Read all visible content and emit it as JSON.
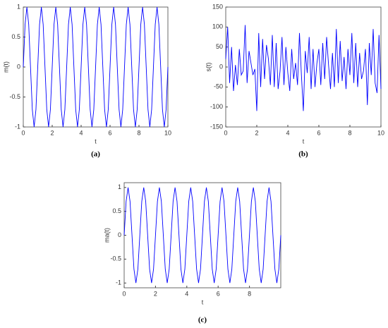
{
  "chart_data": [
    {
      "type": "line",
      "caption": "(a)",
      "xlabel": "t",
      "ylabel": "m(t)",
      "x": [
        0,
        0.125,
        0.25,
        0.375,
        0.5,
        0.625,
        0.75,
        0.875,
        1,
        1.125,
        1.25,
        1.375,
        1.5,
        1.625,
        1.75,
        1.875,
        2,
        2.125,
        2.25,
        2.375,
        2.5,
        2.625,
        2.75,
        2.875,
        3,
        3.125,
        3.25,
        3.375,
        3.5,
        3.625,
        3.75,
        3.875,
        4,
        4.125,
        4.25,
        4.375,
        4.5,
        4.625,
        4.75,
        4.875,
        5,
        5.125,
        5.25,
        5.375,
        5.5,
        5.625,
        5.75,
        5.875,
        6,
        6.125,
        6.25,
        6.375,
        6.5,
        6.625,
        6.75,
        6.875,
        7,
        7.125,
        7.25,
        7.375,
        7.5,
        7.625,
        7.75,
        7.875,
        8,
        8.125,
        8.25,
        8.375,
        8.5,
        8.625,
        8.75,
        8.875,
        9,
        9.125,
        9.25,
        9.375,
        9.5,
        9.625,
        9.75,
        9.875,
        10
      ],
      "series": [
        {
          "color": "#0000ff",
          "values": [
            0,
            0.71,
            1,
            0.71,
            0,
            -0.71,
            -1,
            -0.71,
            0,
            0.71,
            1,
            0.71,
            0,
            -0.71,
            -1,
            -0.71,
            0,
            0.71,
            1,
            0.71,
            0,
            -0.71,
            -1,
            -0.71,
            0,
            0.71,
            1,
            0.71,
            0,
            -0.71,
            -1,
            -0.71,
            0,
            0.71,
            1,
            0.71,
            0,
            -0.71,
            -1,
            -0.71,
            0,
            0.71,
            1,
            0.71,
            0,
            -0.71,
            -1,
            -0.71,
            0,
            0.71,
            1,
            0.71,
            0,
            -0.71,
            -1,
            -0.71,
            0,
            0.71,
            1,
            0.71,
            0,
            -0.71,
            -1,
            -0.71,
            0,
            0.71,
            1,
            0.71,
            0,
            -0.71,
            -1,
            -0.71,
            0,
            0.71,
            1,
            0.71,
            0,
            -0.71,
            -1,
            -0.71,
            0
          ]
        }
      ],
      "xlim": [
        0,
        10
      ],
      "xticks": [
        0,
        2,
        4,
        6,
        8,
        10
      ],
      "ylim": [
        -1,
        1
      ],
      "yticks": [
        -1,
        -0.5,
        0,
        0.5,
        1
      ]
    },
    {
      "type": "line",
      "caption": "(b)",
      "xlabel": "t",
      "ylabel": "s(t)",
      "x": [
        0,
        0.125,
        0.25,
        0.375,
        0.5,
        0.625,
        0.75,
        0.875,
        1,
        1.125,
        1.25,
        1.375,
        1.5,
        1.625,
        1.75,
        1.875,
        2,
        2.125,
        2.25,
        2.375,
        2.5,
        2.625,
        2.75,
        2.875,
        3,
        3.125,
        3.25,
        3.375,
        3.5,
        3.625,
        3.75,
        3.875,
        4,
        4.125,
        4.25,
        4.375,
        4.5,
        4.625,
        4.75,
        4.875,
        5,
        5.125,
        5.25,
        5.375,
        5.5,
        5.625,
        5.75,
        5.875,
        6,
        6.125,
        6.25,
        6.375,
        6.5,
        6.625,
        6.75,
        6.875,
        7,
        7.125,
        7.25,
        7.375,
        7.5,
        7.625,
        7.75,
        7.875,
        8,
        8.125,
        8.25,
        8.375,
        8.5,
        8.625,
        8.75,
        8.875,
        9,
        9.125,
        9.25,
        9.375,
        9.5,
        9.625,
        9.75,
        9.875,
        10
      ],
      "series": [
        {
          "color": "#0000ff",
          "values": [
            20,
            100,
            -40,
            50,
            -60,
            5,
            -45,
            45,
            -20,
            -10,
            105,
            -40,
            40,
            10,
            -20,
            -5,
            -110,
            85,
            -50,
            70,
            -30,
            55,
            20,
            -45,
            80,
            -50,
            60,
            -55,
            -10,
            75,
            -45,
            50,
            -15,
            -60,
            45,
            -30,
            10,
            -45,
            85,
            -20,
            -110,
            40,
            -15,
            75,
            -55,
            45,
            -50,
            10,
            45,
            -45,
            60,
            -30,
            75,
            5,
            -55,
            35,
            -50,
            95,
            -40,
            65,
            -35,
            25,
            -55,
            45,
            -20,
            85,
            -40,
            60,
            -50,
            35,
            -30,
            -10,
            45,
            -95,
            60,
            -20,
            95,
            -40,
            -65,
            80,
            -55
          ]
        }
      ],
      "xlim": [
        0,
        10
      ],
      "xticks": [
        0,
        2,
        4,
        6,
        8,
        10
      ],
      "ylim": [
        -150,
        150
      ],
      "yticks": [
        -150,
        -100,
        -50,
        0,
        50,
        100,
        150
      ]
    },
    {
      "type": "line",
      "caption": "(c)",
      "xlabel": "t",
      "ylabel": "ma(t)",
      "x": [
        0,
        0.125,
        0.25,
        0.375,
        0.5,
        0.625,
        0.75,
        0.875,
        1,
        1.125,
        1.25,
        1.375,
        1.5,
        1.625,
        1.75,
        1.875,
        2,
        2.125,
        2.25,
        2.375,
        2.5,
        2.625,
        2.75,
        2.875,
        3,
        3.125,
        3.25,
        3.375,
        3.5,
        3.625,
        3.75,
        3.875,
        4,
        4.125,
        4.25,
        4.375,
        4.5,
        4.625,
        4.75,
        4.875,
        5,
        5.125,
        5.25,
        5.375,
        5.5,
        5.625,
        5.75,
        5.875,
        6,
        6.125,
        6.25,
        6.375,
        6.5,
        6.625,
        6.75,
        6.875,
        7,
        7.125,
        7.25,
        7.375,
        7.5,
        7.625,
        7.75,
        7.875,
        8,
        8.125,
        8.25,
        8.375,
        8.5,
        8.625,
        8.75,
        8.875,
        9,
        9.125,
        9.25,
        9.375,
        9.5,
        9.625,
        9.75,
        9.875,
        10
      ],
      "series": [
        {
          "color": "#0000ff",
          "values": [
            0,
            0.71,
            1,
            0.71,
            0,
            -0.71,
            -1,
            -0.71,
            0,
            0.71,
            1,
            0.71,
            0,
            -0.71,
            -1,
            -0.71,
            0,
            0.71,
            1,
            0.71,
            0,
            -0.71,
            -1,
            -0.71,
            0,
            0.71,
            1,
            0.71,
            0,
            -0.71,
            -1,
            -0.71,
            0,
            0.71,
            1,
            0.71,
            0,
            -0.71,
            -1,
            -0.71,
            0,
            0.71,
            1,
            0.71,
            0,
            -0.71,
            -1,
            -0.71,
            0,
            0.71,
            1,
            0.71,
            0,
            -0.71,
            -1,
            -0.71,
            0,
            0.71,
            1,
            0.71,
            0,
            -0.71,
            -1,
            -0.71,
            0,
            0.71,
            1,
            0.71,
            0,
            -0.71,
            -1,
            -0.71,
            0,
            0.71,
            1,
            0.71,
            0,
            -0.71,
            -1,
            -0.71,
            0
          ]
        }
      ],
      "xlim": [
        0,
        10
      ],
      "xticks": [
        0,
        2,
        4,
        6,
        8
      ],
      "ylim": [
        -1.1,
        1.1
      ],
      "yticks": [
        -1,
        -0.5,
        0,
        0.5,
        1
      ]
    }
  ]
}
